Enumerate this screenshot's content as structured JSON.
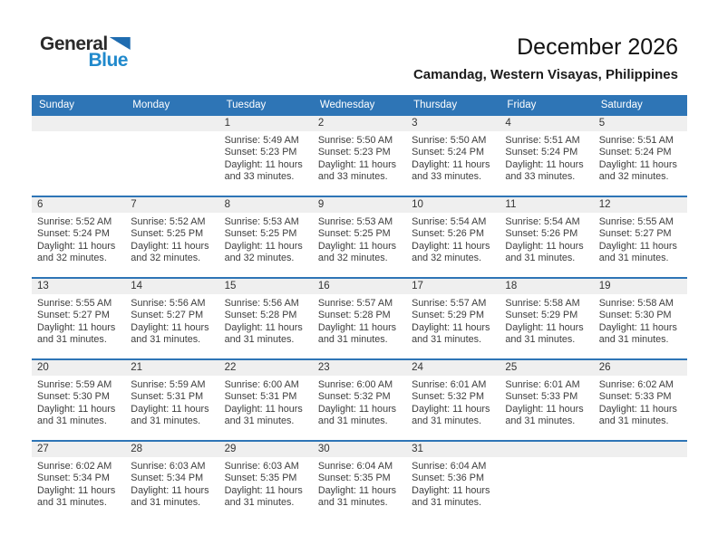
{
  "logo": {
    "general": "General",
    "blue": "Blue"
  },
  "header": {
    "title": "December 2026",
    "subtitle": "Camandag, Western Visayas, Philippines"
  },
  "colors": {
    "header_bg": "#2E75B6",
    "divider": "#2E75B6",
    "band_bg": "#EFEFEF",
    "cell_text": "#3D3D3D",
    "logo_blue": "#2089CC",
    "triangle_blue": "#1F6CB0"
  },
  "calendar": {
    "weekdays": [
      "Sunday",
      "Monday",
      "Tuesday",
      "Wednesday",
      "Thursday",
      "Friday",
      "Saturday"
    ],
    "weeks": [
      [
        null,
        null,
        {
          "day": "1",
          "lines": [
            "Sunrise: 5:49 AM",
            "Sunset: 5:23 PM",
            "Daylight: 11 hours",
            "and 33 minutes."
          ]
        },
        {
          "day": "2",
          "lines": [
            "Sunrise: 5:50 AM",
            "Sunset: 5:23 PM",
            "Daylight: 11 hours",
            "and 33 minutes."
          ]
        },
        {
          "day": "3",
          "lines": [
            "Sunrise: 5:50 AM",
            "Sunset: 5:24 PM",
            "Daylight: 11 hours",
            "and 33 minutes."
          ]
        },
        {
          "day": "4",
          "lines": [
            "Sunrise: 5:51 AM",
            "Sunset: 5:24 PM",
            "Daylight: 11 hours",
            "and 33 minutes."
          ]
        },
        {
          "day": "5",
          "lines": [
            "Sunrise: 5:51 AM",
            "Sunset: 5:24 PM",
            "Daylight: 11 hours",
            "and 32 minutes."
          ]
        }
      ],
      [
        {
          "day": "6",
          "lines": [
            "Sunrise: 5:52 AM",
            "Sunset: 5:24 PM",
            "Daylight: 11 hours",
            "and 32 minutes."
          ]
        },
        {
          "day": "7",
          "lines": [
            "Sunrise: 5:52 AM",
            "Sunset: 5:25 PM",
            "Daylight: 11 hours",
            "and 32 minutes."
          ]
        },
        {
          "day": "8",
          "lines": [
            "Sunrise: 5:53 AM",
            "Sunset: 5:25 PM",
            "Daylight: 11 hours",
            "and 32 minutes."
          ]
        },
        {
          "day": "9",
          "lines": [
            "Sunrise: 5:53 AM",
            "Sunset: 5:25 PM",
            "Daylight: 11 hours",
            "and 32 minutes."
          ]
        },
        {
          "day": "10",
          "lines": [
            "Sunrise: 5:54 AM",
            "Sunset: 5:26 PM",
            "Daylight: 11 hours",
            "and 32 minutes."
          ]
        },
        {
          "day": "11",
          "lines": [
            "Sunrise: 5:54 AM",
            "Sunset: 5:26 PM",
            "Daylight: 11 hours",
            "and 31 minutes."
          ]
        },
        {
          "day": "12",
          "lines": [
            "Sunrise: 5:55 AM",
            "Sunset: 5:27 PM",
            "Daylight: 11 hours",
            "and 31 minutes."
          ]
        }
      ],
      [
        {
          "day": "13",
          "lines": [
            "Sunrise: 5:55 AM",
            "Sunset: 5:27 PM",
            "Daylight: 11 hours",
            "and 31 minutes."
          ]
        },
        {
          "day": "14",
          "lines": [
            "Sunrise: 5:56 AM",
            "Sunset: 5:27 PM",
            "Daylight: 11 hours",
            "and 31 minutes."
          ]
        },
        {
          "day": "15",
          "lines": [
            "Sunrise: 5:56 AM",
            "Sunset: 5:28 PM",
            "Daylight: 11 hours",
            "and 31 minutes."
          ]
        },
        {
          "day": "16",
          "lines": [
            "Sunrise: 5:57 AM",
            "Sunset: 5:28 PM",
            "Daylight: 11 hours",
            "and 31 minutes."
          ]
        },
        {
          "day": "17",
          "lines": [
            "Sunrise: 5:57 AM",
            "Sunset: 5:29 PM",
            "Daylight: 11 hours",
            "and 31 minutes."
          ]
        },
        {
          "day": "18",
          "lines": [
            "Sunrise: 5:58 AM",
            "Sunset: 5:29 PM",
            "Daylight: 11 hours",
            "and 31 minutes."
          ]
        },
        {
          "day": "19",
          "lines": [
            "Sunrise: 5:58 AM",
            "Sunset: 5:30 PM",
            "Daylight: 11 hours",
            "and 31 minutes."
          ]
        }
      ],
      [
        {
          "day": "20",
          "lines": [
            "Sunrise: 5:59 AM",
            "Sunset: 5:30 PM",
            "Daylight: 11 hours",
            "and 31 minutes."
          ]
        },
        {
          "day": "21",
          "lines": [
            "Sunrise: 5:59 AM",
            "Sunset: 5:31 PM",
            "Daylight: 11 hours",
            "and 31 minutes."
          ]
        },
        {
          "day": "22",
          "lines": [
            "Sunrise: 6:00 AM",
            "Sunset: 5:31 PM",
            "Daylight: 11 hours",
            "and 31 minutes."
          ]
        },
        {
          "day": "23",
          "lines": [
            "Sunrise: 6:00 AM",
            "Sunset: 5:32 PM",
            "Daylight: 11 hours",
            "and 31 minutes."
          ]
        },
        {
          "day": "24",
          "lines": [
            "Sunrise: 6:01 AM",
            "Sunset: 5:32 PM",
            "Daylight: 11 hours",
            "and 31 minutes."
          ]
        },
        {
          "day": "25",
          "lines": [
            "Sunrise: 6:01 AM",
            "Sunset: 5:33 PM",
            "Daylight: 11 hours",
            "and 31 minutes."
          ]
        },
        {
          "day": "26",
          "lines": [
            "Sunrise: 6:02 AM",
            "Sunset: 5:33 PM",
            "Daylight: 11 hours",
            "and 31 minutes."
          ]
        }
      ],
      [
        {
          "day": "27",
          "lines": [
            "Sunrise: 6:02 AM",
            "Sunset: 5:34 PM",
            "Daylight: 11 hours",
            "and 31 minutes."
          ]
        },
        {
          "day": "28",
          "lines": [
            "Sunrise: 6:03 AM",
            "Sunset: 5:34 PM",
            "Daylight: 11 hours",
            "and 31 minutes."
          ]
        },
        {
          "day": "29",
          "lines": [
            "Sunrise: 6:03 AM",
            "Sunset: 5:35 PM",
            "Daylight: 11 hours",
            "and 31 minutes."
          ]
        },
        {
          "day": "30",
          "lines": [
            "Sunrise: 6:04 AM",
            "Sunset: 5:35 PM",
            "Daylight: 11 hours",
            "and 31 minutes."
          ]
        },
        {
          "day": "31",
          "lines": [
            "Sunrise: 6:04 AM",
            "Sunset: 5:36 PM",
            "Daylight: 11 hours",
            "and 31 minutes."
          ]
        },
        null,
        null
      ]
    ]
  }
}
